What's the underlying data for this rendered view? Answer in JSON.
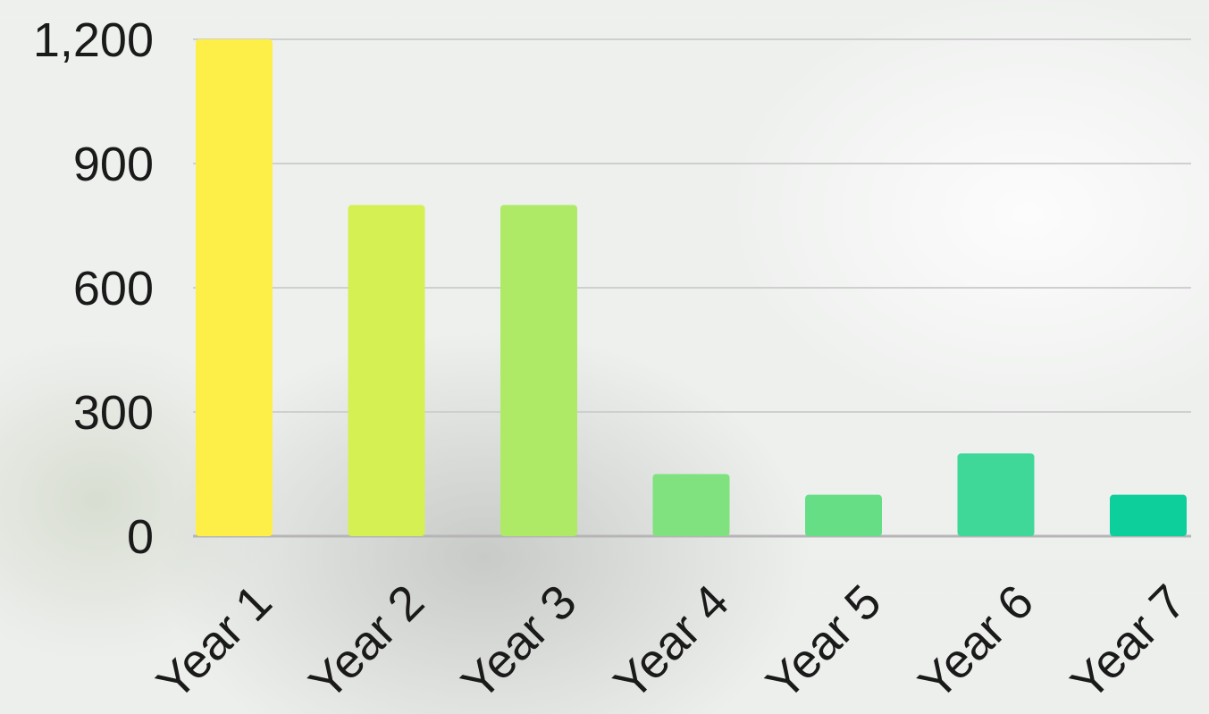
{
  "chart_data": {
    "type": "bar",
    "title": "",
    "xlabel": "",
    "ylabel": "",
    "categories": [
      "Year 1",
      "Year 2",
      "Year 3",
      "Year 4",
      "Year 5",
      "Year 6",
      "Year 7"
    ],
    "values": [
      1200,
      800,
      800,
      150,
      100,
      200,
      100
    ],
    "ylim": [
      0,
      1200
    ],
    "yticks": [
      0,
      300,
      600,
      900,
      1200
    ],
    "ytick_labels": [
      "0",
      "300",
      "600",
      "900",
      "1,200"
    ],
    "grid": true,
    "bar_colors": [
      "#fdef47",
      "#d4f053",
      "#aeea66",
      "#7fe27e",
      "#66de86",
      "#40d898",
      "#0ccf9c"
    ],
    "grid_color": "#cfcfcf",
    "text_color": "#1a1a1a"
  }
}
